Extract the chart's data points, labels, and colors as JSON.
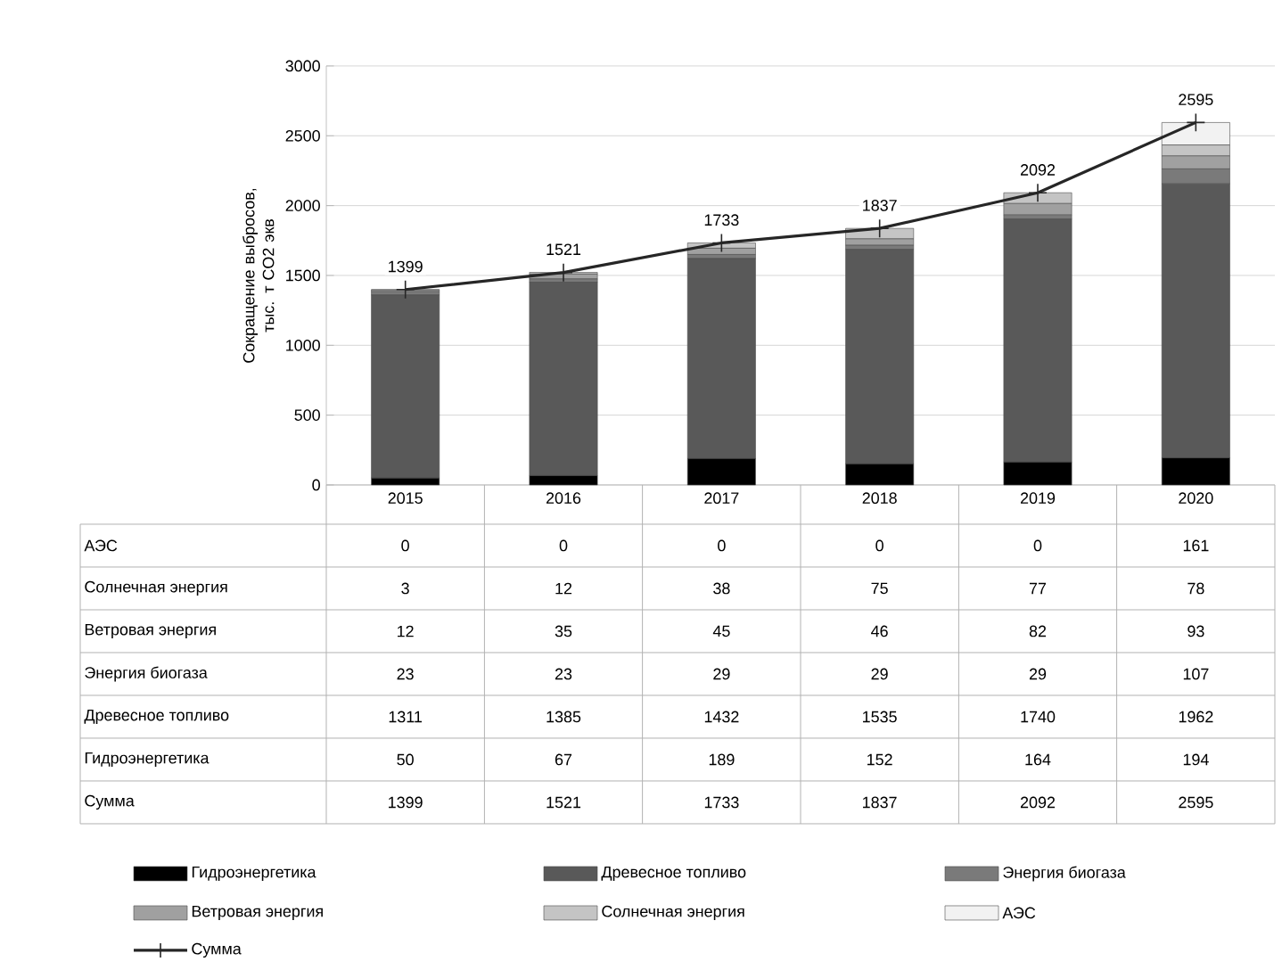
{
  "chart_data": {
    "type": "bar",
    "stacked": true,
    "ylabel": "Сокращение выбросов, тыс. т CO2 экв",
    "categories": [
      "2015",
      "2016",
      "2017",
      "2018",
      "2019",
      "2020"
    ],
    "series": [
      {
        "name": "Гидроэнергетика",
        "color": "#000000",
        "values": [
          50,
          67,
          189,
          152,
          164,
          194
        ]
      },
      {
        "name": "Древесное топливо",
        "color": "#595959",
        "values": [
          1311,
          1385,
          1432,
          1535,
          1740,
          1962
        ]
      },
      {
        "name": "Энергия биогаза",
        "color": "#7a7a7a",
        "values": [
          23,
          23,
          29,
          29,
          29,
          107
        ]
      },
      {
        "name": "Ветровая энергия",
        "color": "#a0a0a0",
        "values": [
          12,
          35,
          45,
          46,
          82,
          93
        ]
      },
      {
        "name": "Солнечная энергия",
        "color": "#c4c4c4",
        "values": [
          3,
          12,
          38,
          75,
          77,
          78
        ]
      },
      {
        "name": "АЭС",
        "color": "#f2f2f2",
        "values": [
          0,
          0,
          0,
          0,
          0,
          161
        ]
      },
      {
        "name": "Сумма",
        "type": "line",
        "color": "#262626",
        "marker": "cross",
        "values": [
          1399,
          1521,
          1733,
          1837,
          2092,
          2595
        ]
      }
    ],
    "ylim": [
      0,
      3000
    ],
    "yticks": [
      0,
      500,
      1000,
      1500,
      2000,
      2500,
      3000
    ],
    "grid": "y",
    "legend": "bottom",
    "data_labels": true,
    "totals": [
      "1399",
      "1521",
      "1733",
      "1837",
      "2092",
      "2595"
    ]
  }
}
